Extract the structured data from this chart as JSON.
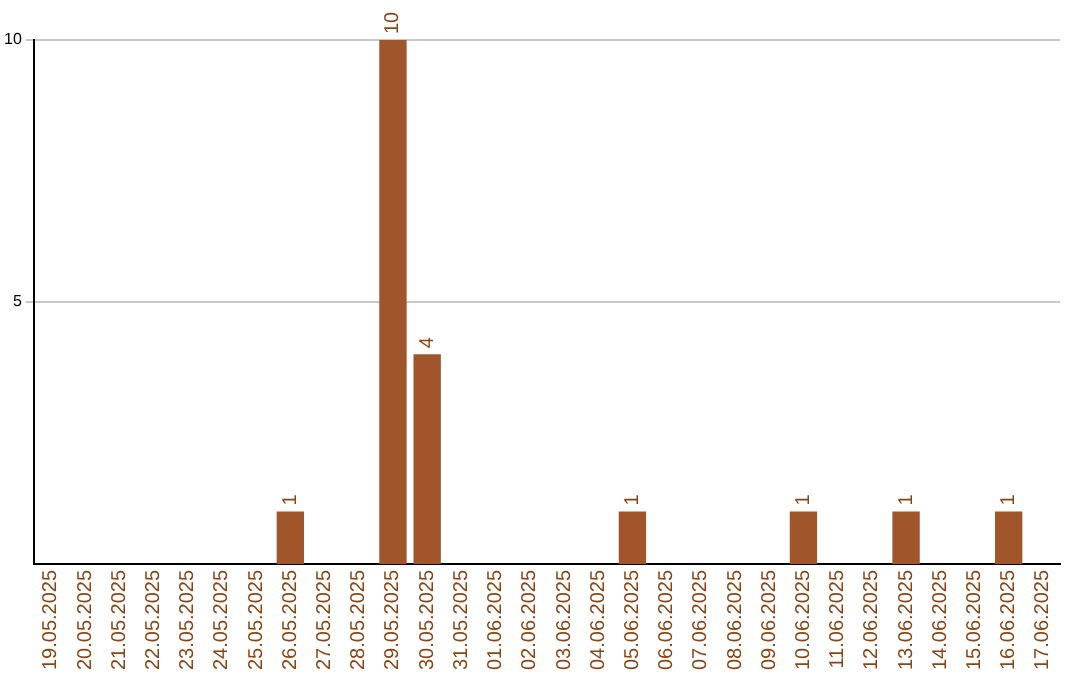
{
  "chart_data": {
    "type": "bar",
    "categories": [
      "19.05.2025",
      "20.05.2025",
      "21.05.2025",
      "22.05.2025",
      "23.05.2025",
      "24.05.2025",
      "25.05.2025",
      "26.05.2025",
      "27.05.2025",
      "28.05.2025",
      "29.05.2025",
      "30.05.2025",
      "31.05.2025",
      "01.06.2025",
      "02.06.2025",
      "03.06.2025",
      "04.06.2025",
      "05.06.2025",
      "06.06.2025",
      "07.06.2025",
      "08.06.2025",
      "09.06.2025",
      "10.06.2025",
      "11.06.2025",
      "12.06.2025",
      "13.06.2025",
      "14.06.2025",
      "15.06.2025",
      "16.06.2025",
      "17.06.2025"
    ],
    "values": [
      null,
      null,
      null,
      null,
      null,
      null,
      null,
      1,
      null,
      null,
      10,
      4,
      null,
      null,
      null,
      null,
      null,
      1,
      null,
      null,
      null,
      null,
      1,
      null,
      null,
      1,
      null,
      null,
      1,
      null
    ],
    "color": "#a0562a",
    "ylim": [
      0,
      10
    ],
    "yticks": [
      5,
      10
    ],
    "grid": "y",
    "data_labels": true,
    "legend": false
  }
}
